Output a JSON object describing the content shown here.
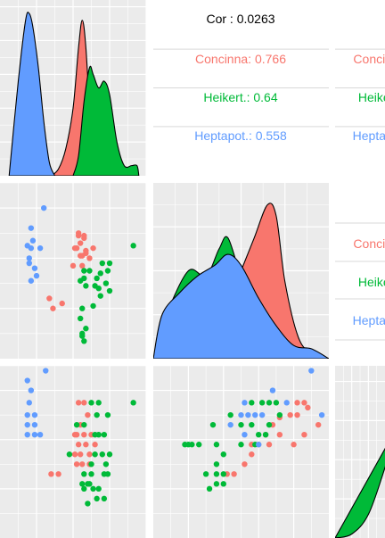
{
  "colors": {
    "Concinna": "#F8766D",
    "Heikert.": "#00BA38",
    "Heptapot.": "#619CFF",
    "panel_bg": "#EBEBEB",
    "grid": "#FFFFFF"
  },
  "corr_panels": [
    {
      "title": "Cor : 0.0263",
      "rows": [
        {
          "label": "Concinna: 0.766",
          "group": "Concinna"
        },
        {
          "label": "Heikert.: 0.64",
          "group": "Heikert."
        },
        {
          "label": "Heptapot.: 0.558",
          "group": "Heptapot."
        }
      ]
    },
    {
      "title": "",
      "rows": [
        {
          "label": "Concinna",
          "group": "Concinna"
        },
        {
          "label": "Heikert.",
          "group": "Heikert."
        },
        {
          "label": "Heptapot.",
          "group": "Heptapot."
        }
      ]
    },
    {
      "title": "",
      "rows": [
        {
          "label": "Concinna",
          "group": "Concinna"
        },
        {
          "label": "Heikert.",
          "group": "Heikert."
        },
        {
          "label": "Heptapot.",
          "group": "Heptapot."
        }
      ]
    }
  ],
  "chart_data": [
    {
      "type": "scatter",
      "panel": "row2-col1",
      "series": [
        {
          "name": "Concinna",
          "points": [
            [
              4.2,
              4.4
            ],
            [
              4.3,
              4.9
            ],
            [
              4.4,
              4.6
            ],
            [
              4.5,
              3.7
            ],
            [
              4.6,
              4.9
            ],
            [
              4.7,
              4.2
            ],
            [
              4.9,
              4.0
            ],
            [
              4.0,
              3.7
            ],
            [
              4.1,
              4.4
            ],
            [
              4.4,
              4.1
            ],
            [
              4.7,
              4.3
            ],
            [
              4.3,
              5.0
            ],
            [
              2.7,
              2.4
            ],
            [
              3.4,
              2.2
            ],
            [
              2.9,
              2.0
            ],
            [
              5.1,
              4.4
            ],
            [
              4.6,
              4.8
            ],
            [
              4.5,
              4.1
            ]
          ]
        },
        {
          "name": "Heikert.",
          "points": [
            [
              7.3,
              4.5
            ],
            [
              4.9,
              3.5
            ],
            [
              5.3,
              3.2
            ],
            [
              5.5,
              3.4
            ],
            [
              5.8,
              3.0
            ],
            [
              6.0,
              2.7
            ],
            [
              4.6,
              3.5
            ],
            [
              4.6,
              3.2
            ],
            [
              4.4,
              3.1
            ],
            [
              5.2,
              2.9
            ],
            [
              5.6,
              3.8
            ],
            [
              5.9,
              3.5
            ],
            [
              4.7,
              2.9
            ],
            [
              4.5,
              2.0
            ],
            [
              4.4,
              1.6
            ],
            [
              4.5,
              1.0
            ],
            [
              4.5,
              0.9
            ],
            [
              4.7,
              1.2
            ],
            [
              4.6,
              0.7
            ],
            [
              5.1,
              2.1
            ],
            [
              5.4,
              2.8
            ],
            [
              6.0,
              3.8
            ],
            [
              5.5,
              2.5
            ]
          ]
        },
        {
          "name": "Heptapot.",
          "points": [
            [
              1.7,
              5.2
            ],
            [
              1.8,
              4.7
            ],
            [
              1.7,
              4.4
            ],
            [
              2.2,
              4.4
            ],
            [
              1.6,
              4.0
            ],
            [
              1.9,
              3.6
            ],
            [
              2.0,
              3.3
            ],
            [
              1.7,
              3.1
            ],
            [
              2.4,
              6.0
            ],
            [
              1.5,
              4.5
            ],
            [
              1.6,
              3.8
            ]
          ]
        }
      ]
    },
    {
      "type": "scatter",
      "panel": "row3-col1",
      "series": [
        {
          "name": "Concinna",
          "points": [
            [
              4.3,
              5.5
            ],
            [
              4.6,
              5.5
            ],
            [
              4.8,
              5.0
            ],
            [
              4.4,
              4.6
            ],
            [
              4.2,
              4.2
            ],
            [
              4.6,
              4.2
            ],
            [
              4.1,
              4.2
            ],
            [
              4.3,
              3.8
            ],
            [
              4.7,
              3.8
            ],
            [
              4.1,
              3.4
            ],
            [
              4.4,
              3.4
            ],
            [
              4.9,
              3.4
            ],
            [
              4.2,
              3.0
            ],
            [
              4.5,
              3.0
            ],
            [
              2.8,
              2.6
            ],
            [
              3.2,
              2.6
            ],
            [
              5.0,
              4.2
            ],
            [
              5.2,
              3.8
            ],
            [
              4.9,
              3.0
            ]
          ]
        },
        {
          "name": "Heikert.",
          "points": [
            [
              7.3,
              5.5
            ],
            [
              5.0,
              5.5
            ],
            [
              5.4,
              5.5
            ],
            [
              5.3,
              5.0
            ],
            [
              5.9,
              5.0
            ],
            [
              5.2,
              4.2
            ],
            [
              5.7,
              4.2
            ],
            [
              5.6,
              3.4
            ],
            [
              6.0,
              3.4
            ],
            [
              5.0,
              3.0
            ],
            [
              5.8,
              3.0
            ],
            [
              4.6,
              2.6
            ],
            [
              5.0,
              2.6
            ],
            [
              5.7,
              2.6
            ],
            [
              5.9,
              2.6
            ],
            [
              4.5,
              2.2
            ],
            [
              4.9,
              2.2
            ],
            [
              4.6,
              2.0
            ],
            [
              5.1,
              2.0
            ],
            [
              5.4,
              2.0
            ],
            [
              5.3,
              1.6
            ],
            [
              5.7,
              1.6
            ],
            [
              4.2,
              4.6
            ],
            [
              4.6,
              4.6
            ],
            [
              5.4,
              4.2
            ],
            [
              3.8,
              3.4
            ],
            [
              5.2,
              3.4
            ],
            [
              4.8,
              2.2
            ],
            [
              4.8,
              1.4
            ]
          ]
        },
        {
          "name": "Heptapot.",
          "points": [
            [
              1.5,
              6.4
            ],
            [
              1.7,
              6.0
            ],
            [
              1.6,
              5.5
            ],
            [
              1.9,
              5.0
            ],
            [
              1.5,
              5.0
            ],
            [
              1.5,
              4.6
            ],
            [
              1.9,
              4.6
            ],
            [
              1.5,
              4.2
            ],
            [
              1.9,
              4.2
            ],
            [
              2.2,
              4.2
            ],
            [
              2.5,
              6.8
            ]
          ]
        }
      ]
    },
    {
      "type": "scatter",
      "panel": "row3-col2",
      "series": [
        {
          "name": "Concinna",
          "points": [
            [
              4.4,
              5.3
            ],
            [
              3.9,
              5.0
            ],
            [
              4.1,
              5.0
            ],
            [
              3.4,
              4.6
            ],
            [
              4.7,
              4.6
            ],
            [
              3.2,
              4.2
            ],
            [
              3.6,
              4.2
            ],
            [
              4.3,
              4.2
            ],
            [
              2.8,
              3.8
            ],
            [
              3.0,
              3.8
            ],
            [
              3.3,
              3.8
            ],
            [
              4.0,
              3.8
            ],
            [
              2.8,
              3.4
            ],
            [
              2.6,
              3.0
            ],
            [
              2.3,
              2.6
            ],
            [
              2.1,
              2.6
            ],
            [
              4.1,
              5.5
            ],
            [
              4.3,
              5.5
            ],
            [
              3.6,
              4.9
            ]
          ]
        },
        {
          "name": "Heikert.",
          "points": [
            [
              2.8,
              5.5
            ],
            [
              3.1,
              5.5
            ],
            [
              3.3,
              5.5
            ],
            [
              3.5,
              5.5
            ],
            [
              3.6,
              5.0
            ],
            [
              3.3,
              4.6
            ],
            [
              2.8,
              4.6
            ],
            [
              2.5,
              4.6
            ],
            [
              1.7,
              4.6
            ],
            [
              3.2,
              4.2
            ],
            [
              2.9,
              3.8
            ],
            [
              1.0,
              3.8
            ],
            [
              1.1,
              3.8
            ],
            [
              1.3,
              3.8
            ],
            [
              1.8,
              3.8
            ],
            [
              2.0,
              3.4
            ],
            [
              1.8,
              3.0
            ],
            [
              1.8,
              2.6
            ],
            [
              2.0,
              2.6
            ],
            [
              1.5,
              2.6
            ],
            [
              1.8,
              2.2
            ],
            [
              2.0,
              2.2
            ],
            [
              1.6,
              2.0
            ],
            [
              0.9,
              3.8
            ],
            [
              2.5,
              3.8
            ],
            [
              2.2,
              5.0
            ],
            [
              3.0,
              4.2
            ]
          ]
        },
        {
          "name": "Heptapot.",
          "points": [
            [
              4.5,
              6.8
            ],
            [
              3.4,
              6.0
            ],
            [
              2.6,
              5.5
            ],
            [
              3.8,
              5.5
            ],
            [
              2.5,
              5.0
            ],
            [
              2.7,
              5.0
            ],
            [
              2.9,
              5.0
            ],
            [
              3.1,
              5.0
            ],
            [
              2.2,
              4.6
            ],
            [
              2.6,
              4.2
            ],
            [
              3.0,
              3.8
            ],
            [
              4.8,
              5.0
            ]
          ]
        }
      ]
    },
    {
      "type": "area",
      "panel": "row1-col1",
      "series": [
        {
          "name": "Concinna",
          "points": [
            [
              2.8,
              0.0
            ],
            [
              3.2,
              0.1
            ],
            [
              3.6,
              0.4
            ],
            [
              4.0,
              1.0
            ],
            [
              4.3,
              1.9
            ],
            [
              4.5,
              2.3
            ],
            [
              4.7,
              1.9
            ],
            [
              5.0,
              0.6
            ],
            [
              5.3,
              0.1
            ],
            [
              5.8,
              0.0
            ]
          ]
        },
        {
          "name": "Heikert.",
          "points": [
            [
              4.0,
              0.0
            ],
            [
              4.3,
              0.3
            ],
            [
              4.6,
              1.1
            ],
            [
              4.9,
              1.6
            ],
            [
              5.1,
              1.5
            ],
            [
              5.4,
              1.3
            ],
            [
              5.7,
              1.4
            ],
            [
              6.0,
              1.2
            ],
            [
              6.4,
              0.5
            ],
            [
              6.8,
              0.15
            ],
            [
              7.2,
              0.15
            ],
            [
              7.5,
              0.15
            ],
            [
              7.6,
              0.0
            ]
          ]
        },
        {
          "name": "Heptapot.",
          "points": [
            [
              0.5,
              0.0
            ],
            [
              1.0,
              1.4
            ],
            [
              1.4,
              2.3
            ],
            [
              1.6,
              2.4
            ],
            [
              1.8,
              2.2
            ],
            [
              2.1,
              1.6
            ],
            [
              2.4,
              0.8
            ],
            [
              2.7,
              0.2
            ],
            [
              3.0,
              0.0
            ]
          ]
        }
      ]
    },
    {
      "type": "area",
      "panel": "row2-col2",
      "series": [
        {
          "name": "Concinna",
          "points": [
            [
              1.0,
              0.0
            ],
            [
              1.5,
              0.45
            ],
            [
              2.0,
              0.55
            ],
            [
              2.4,
              0.55
            ],
            [
              2.8,
              0.6
            ],
            [
              3.0,
              0.8
            ],
            [
              3.3,
              1.1
            ],
            [
              3.6,
              1.4
            ],
            [
              3.8,
              1.3
            ],
            [
              4.0,
              0.7
            ],
            [
              4.3,
              0.2
            ],
            [
              4.6,
              0.05
            ],
            [
              5.0,
              0.0
            ]
          ]
        },
        {
          "name": "Heikert.",
          "points": [
            [
              1.0,
              0.0
            ],
            [
              1.3,
              0.4
            ],
            [
              1.8,
              0.8
            ],
            [
              2.2,
              0.75
            ],
            [
              2.5,
              1.0
            ],
            [
              2.7,
              1.1
            ],
            [
              3.0,
              0.75
            ],
            [
              3.3,
              0.55
            ],
            [
              3.6,
              0.3
            ],
            [
              3.9,
              0.1
            ],
            [
              4.2,
              0.05
            ],
            [
              5.0,
              0.0
            ]
          ]
        },
        {
          "name": "Heptapot.",
          "points": [
            [
              1.0,
              0.0
            ],
            [
              1.2,
              0.4
            ],
            [
              1.6,
              0.6
            ],
            [
              2.0,
              0.75
            ],
            [
              2.4,
              0.85
            ],
            [
              2.7,
              0.95
            ],
            [
              3.0,
              0.85
            ],
            [
              3.4,
              0.55
            ],
            [
              3.8,
              0.3
            ],
            [
              4.2,
              0.12
            ],
            [
              4.6,
              0.09
            ],
            [
              5.0,
              0.0
            ]
          ]
        }
      ]
    },
    {
      "type": "area",
      "panel": "row3-col3",
      "series": [
        {
          "name": "Heikert.",
          "points": [
            [
              0.0,
              0.0
            ],
            [
              1.0,
              0.05
            ],
            [
              2.0,
              0.3
            ],
            [
              3.0,
              0.9
            ],
            [
              4.0,
              1.6
            ],
            [
              5.0,
              1.9
            ]
          ]
        }
      ]
    }
  ]
}
